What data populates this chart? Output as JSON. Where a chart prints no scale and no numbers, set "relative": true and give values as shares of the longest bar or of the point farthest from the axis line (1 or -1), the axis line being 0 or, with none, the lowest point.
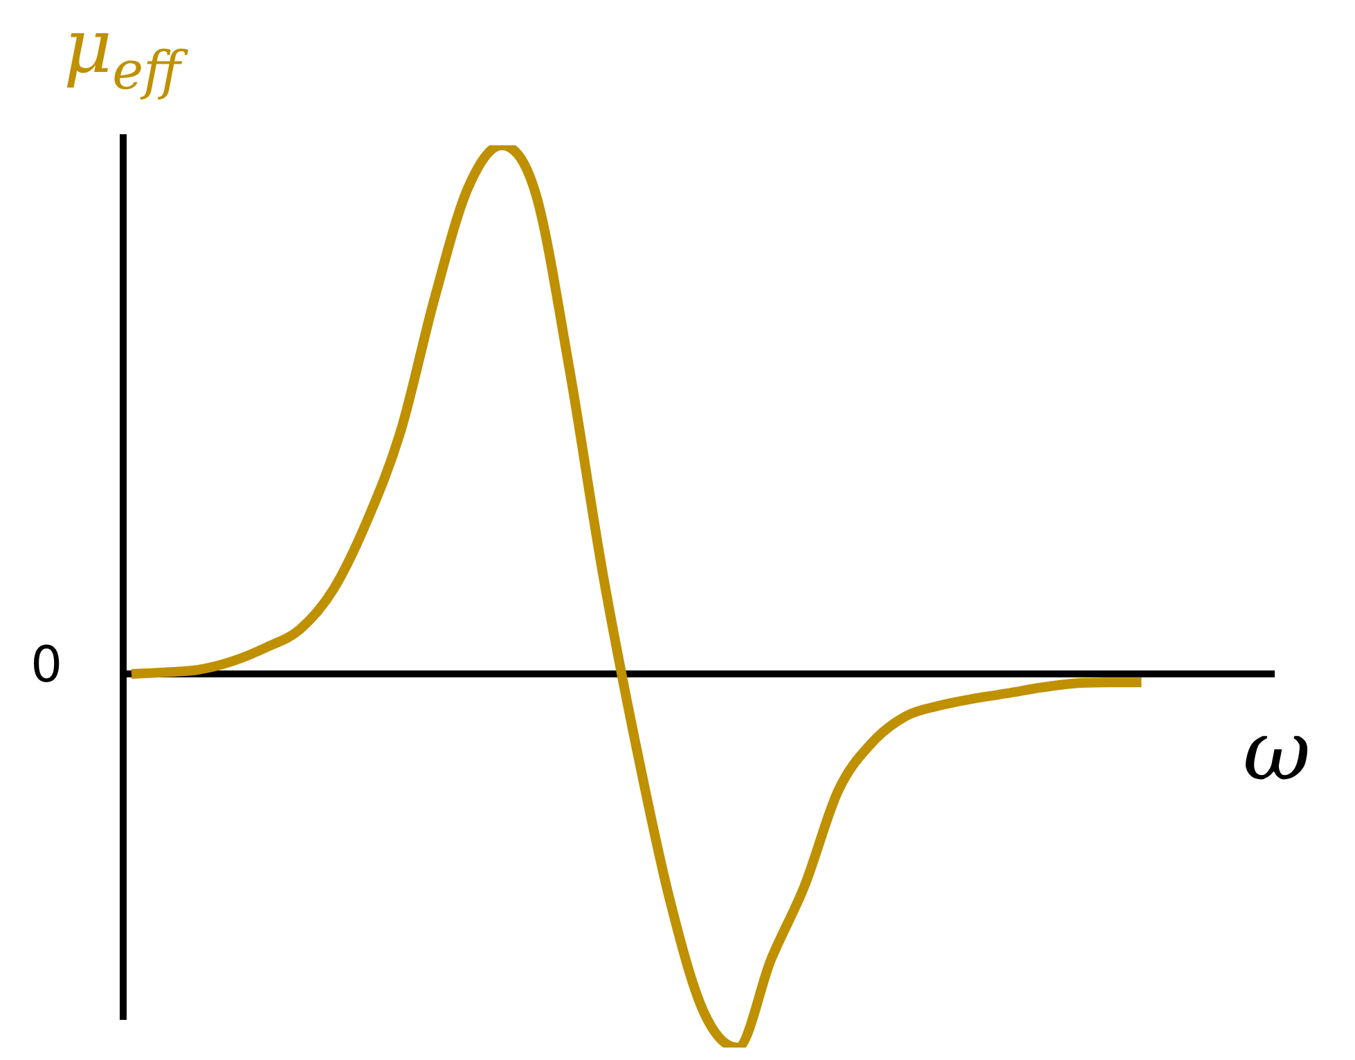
{
  "chart_data": {
    "type": "line",
    "relative": true,
    "ylabel": "μ$_{eff}$",
    "xlabel": "ω",
    "annotations": [
      "0"
    ],
    "legend": false,
    "marker": "none",
    "categories": [
      null,
      null,
      null,
      null,
      null,
      null,
      null,
      null,
      null,
      null,
      null,
      null,
      null,
      null,
      null,
      null,
      null,
      null,
      null,
      null,
      null,
      null,
      null,
      null,
      null,
      null,
      null,
      null,
      null,
      null,
      null,
      null,
      null,
      null,
      null
    ],
    "series": [
      {
        "color": "#bf9000",
        "values": [
          0,
          0.003,
          0.008,
          0.024,
          0.05,
          0.084,
          0.16,
          0.29,
          0.46,
          0.71,
          0.92,
          1,
          0.91,
          0.58,
          0.19,
          -0.14,
          -0.43,
          -0.64,
          -0.707,
          -0.54,
          -0.4,
          -0.22,
          -0.13,
          -0.08,
          -0.06,
          -0.047,
          -0.037,
          -0.026,
          -0.018,
          -0.016,
          -0.016,
          null,
          null,
          null,
          null
        ]
      }
    ]
  }
}
